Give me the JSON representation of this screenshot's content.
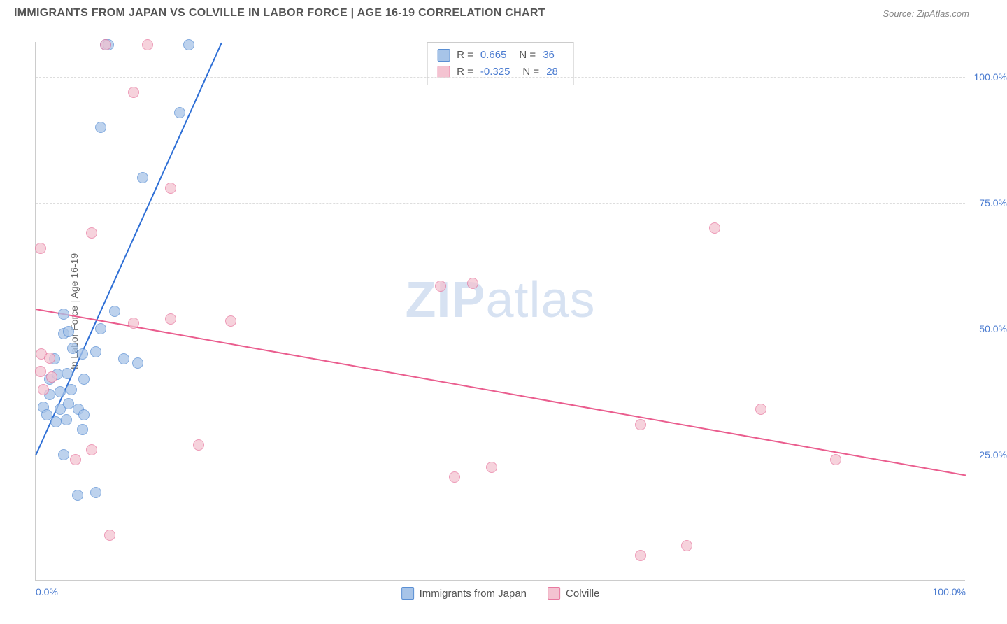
{
  "header": {
    "title": "IMMIGRANTS FROM JAPAN VS COLVILLE IN LABOR FORCE | AGE 16-19 CORRELATION CHART",
    "source_prefix": "Source: ",
    "source_name": "ZipAtlas.com"
  },
  "watermark": {
    "bold": "ZIP",
    "light": "atlas"
  },
  "chart": {
    "type": "scatter",
    "yaxis_label": "In Labor Force | Age 16-19",
    "xlim": [
      0,
      100
    ],
    "ylim": [
      0,
      107
    ],
    "xticks": [
      0,
      50,
      100
    ],
    "xtick_labels": [
      "0.0%",
      "",
      "100.0%"
    ],
    "yticks": [
      25,
      50,
      75,
      100
    ],
    "ytick_labels": [
      "25.0%",
      "50.0%",
      "75.0%",
      "100.0%"
    ],
    "xgrid_minor": [
      50
    ],
    "grid_color": "#dddddd",
    "background_color": "#ffffff",
    "series": [
      {
        "name": "Immigrants from Japan",
        "fill_color": "#a7c4e8",
        "stroke_color": "#5a8fd4",
        "line_color": "#2e6fd6",
        "r": 0.665,
        "n": 36,
        "trend": {
          "x1": 0,
          "y1": 25,
          "x2": 20,
          "y2": 107
        },
        "points": [
          [
            7.5,
            106.5
          ],
          [
            7.8,
            106.5
          ],
          [
            16.5,
            106.5
          ],
          [
            7,
            90
          ],
          [
            15.5,
            93
          ],
          [
            11.5,
            80
          ],
          [
            3,
            49
          ],
          [
            3,
            53
          ],
          [
            3.5,
            49.5
          ],
          [
            7,
            50
          ],
          [
            8.5,
            53.5
          ],
          [
            2,
            44
          ],
          [
            4,
            46.2
          ],
          [
            5,
            45
          ],
          [
            6.5,
            45.5
          ],
          [
            9.5,
            44
          ],
          [
            11,
            43.2
          ],
          [
            1.5,
            40
          ],
          [
            2.3,
            41
          ],
          [
            3.4,
            41.2
          ],
          [
            5.2,
            40
          ],
          [
            1.5,
            37
          ],
          [
            2.6,
            37.5
          ],
          [
            3.8,
            38
          ],
          [
            0.8,
            34.5
          ],
          [
            1.2,
            33
          ],
          [
            2.6,
            34
          ],
          [
            3.5,
            35.2
          ],
          [
            4.6,
            34
          ],
          [
            2.2,
            31.5
          ],
          [
            3.3,
            32
          ],
          [
            5.2,
            33
          ],
          [
            3,
            25
          ],
          [
            4.5,
            17
          ],
          [
            6.5,
            17.5
          ],
          [
            5,
            30
          ]
        ]
      },
      {
        "name": "Colville",
        "fill_color": "#f4c3d1",
        "stroke_color": "#e879a0",
        "line_color": "#ea5d8e",
        "r": -0.325,
        "n": 28,
        "trend": {
          "x1": 0,
          "y1": 54,
          "x2": 100,
          "y2": 21
        },
        "points": [
          [
            7.5,
            106.5
          ],
          [
            12,
            106.5
          ],
          [
            10.5,
            97
          ],
          [
            14.5,
            78
          ],
          [
            0.5,
            66
          ],
          [
            6,
            69
          ],
          [
            73,
            70
          ],
          [
            43.5,
            58.5
          ],
          [
            47,
            59
          ],
          [
            10.5,
            51.2
          ],
          [
            14.5,
            52
          ],
          [
            21,
            51.5
          ],
          [
            0.6,
            45
          ],
          [
            1.5,
            44.2
          ],
          [
            0.5,
            41.5
          ],
          [
            1.7,
            40.5
          ],
          [
            0.8,
            38
          ],
          [
            78,
            34
          ],
          [
            65,
            31
          ],
          [
            17.5,
            27
          ],
          [
            4.3,
            24
          ],
          [
            6,
            26
          ],
          [
            45,
            20.5
          ],
          [
            49,
            22.5
          ],
          [
            86,
            24
          ],
          [
            8,
            9
          ],
          [
            65,
            5
          ],
          [
            70,
            7
          ]
        ]
      }
    ]
  },
  "legend_stats": {
    "r_label": "R =",
    "n_label": "N ="
  },
  "legend_bottom": {
    "series1": "Immigrants from Japan",
    "series2": "Colville"
  }
}
